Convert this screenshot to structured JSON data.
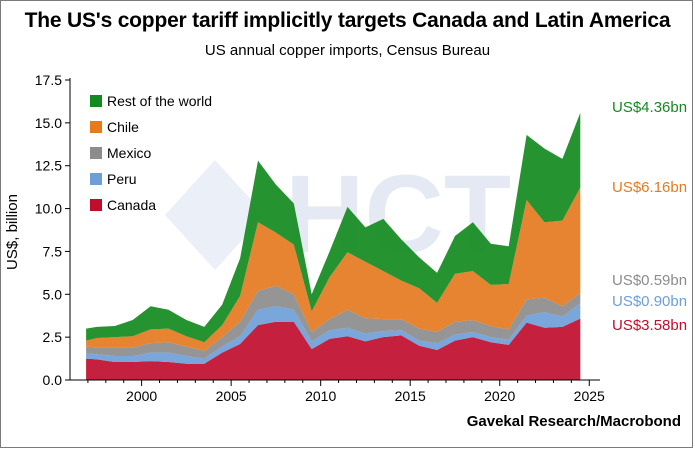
{
  "title": "The US's copper tariff implicitly targets Canada and Latin America",
  "subtitle": "US annual copper imports, Census Bureau",
  "source": "Gavekal Research/Macrobond",
  "watermark": "HCT",
  "chart_data": {
    "type": "area",
    "stacked": true,
    "xlabel": "",
    "ylabel": "US$, billion",
    "xlim": [
      1996,
      2025.6
    ],
    "ylim": [
      0,
      17.5
    ],
    "yticks": [
      "0.0",
      "2.5",
      "5.0",
      "7.5",
      "10.0",
      "12.5",
      "15.0",
      "17.5"
    ],
    "xticks": [
      "2000",
      "2005",
      "2010",
      "2015",
      "2020",
      "2025"
    ],
    "legend_position": "top-left",
    "x": [
      1996.9,
      1997.5,
      1998.5,
      1999.5,
      2000.5,
      2001.5,
      2002.5,
      2003.5,
      2004.5,
      2005.5,
      2006.5,
      2007.5,
      2008.5,
      2009.5,
      2010.5,
      2011.5,
      2012.5,
      2013.5,
      2014.5,
      2015.5,
      2016.5,
      2017.5,
      2018.5,
      2019.5,
      2020.5,
      2021.5,
      2022.5,
      2023.5,
      2024.5
    ],
    "series": [
      {
        "name": "Canada",
        "color": "#c00d2c",
        "values": [
          1.25,
          1.2,
          1.05,
          1.05,
          1.1,
          1.05,
          0.95,
          0.95,
          1.6,
          2.1,
          3.2,
          3.4,
          3.4,
          1.8,
          2.4,
          2.55,
          2.25,
          2.5,
          2.6,
          2.0,
          1.75,
          2.3,
          2.5,
          2.2,
          2.05,
          3.35,
          3.05,
          3.1,
          3.58
        ]
      },
      {
        "name": "Peru",
        "color": "#6e9ed8",
        "values": [
          0.3,
          0.3,
          0.35,
          0.35,
          0.5,
          0.55,
          0.45,
          0.3,
          0.35,
          0.45,
          0.9,
          0.9,
          0.7,
          0.45,
          0.5,
          0.5,
          0.45,
          0.35,
          0.3,
          0.3,
          0.4,
          0.35,
          0.3,
          0.3,
          0.3,
          0.4,
          0.9,
          0.6,
          0.9
        ]
      },
      {
        "name": "Mexico",
        "color": "#8c8c8c",
        "values": [
          0.4,
          0.4,
          0.5,
          0.5,
          0.55,
          0.6,
          0.55,
          0.45,
          0.55,
          0.85,
          1.1,
          1.2,
          0.9,
          0.55,
          0.65,
          1.05,
          0.9,
          0.7,
          0.65,
          0.7,
          0.65,
          0.75,
          0.7,
          0.65,
          0.6,
          0.95,
          0.85,
          0.6,
          0.59
        ]
      },
      {
        "name": "Chile",
        "color": "#e57a1f",
        "values": [
          0.35,
          0.55,
          0.6,
          0.65,
          0.8,
          0.8,
          0.6,
          0.5,
          0.7,
          1.5,
          4.0,
          3.1,
          2.9,
          1.2,
          2.45,
          3.35,
          3.3,
          2.8,
          2.25,
          2.35,
          1.7,
          2.8,
          2.85,
          2.4,
          2.65,
          5.8,
          4.4,
          5.0,
          6.16
        ]
      },
      {
        "name": "Rest of the world",
        "color": "#138a1f",
        "values": [
          0.7,
          0.65,
          0.65,
          0.95,
          1.35,
          1.1,
          0.95,
          0.9,
          1.2,
          2.2,
          3.6,
          2.8,
          2.4,
          1.0,
          1.5,
          2.65,
          2.0,
          3.05,
          2.4,
          1.8,
          1.75,
          2.2,
          2.85,
          2.4,
          2.2,
          3.8,
          4.3,
          3.6,
          4.36
        ]
      }
    ],
    "end_labels": [
      {
        "series": "Rest of the world",
        "text": "US$4.36bn",
        "color": "#138a1f"
      },
      {
        "series": "Chile",
        "text": "US$6.16bn",
        "color": "#e57a1f"
      },
      {
        "series": "Mexico",
        "text": "US$0.59bn",
        "color": "#8c8c8c"
      },
      {
        "series": "Peru",
        "text": "US$0.90bn",
        "color": "#6e9ed8"
      },
      {
        "series": "Canada",
        "text": "US$3.58bn",
        "color": "#c00d2c"
      }
    ],
    "legend_order": [
      "Rest of the world",
      "Chile",
      "Mexico",
      "Peru",
      "Canada"
    ]
  }
}
